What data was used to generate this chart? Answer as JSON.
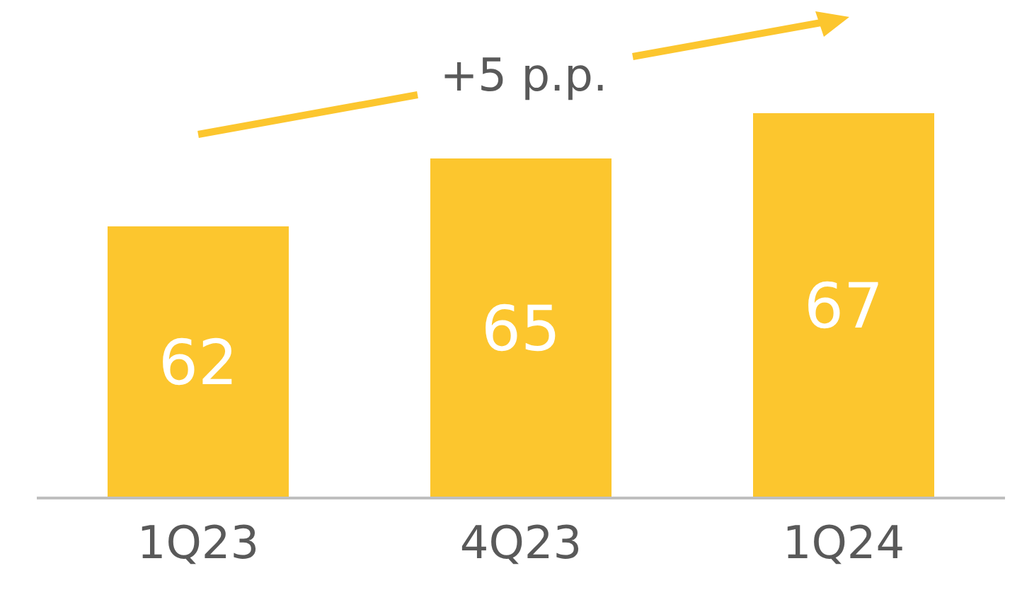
{
  "chart_data": {
    "type": "bar",
    "categories": [
      "1Q23",
      "4Q23",
      "1Q24"
    ],
    "values": [
      62,
      65,
      67
    ],
    "color": "#fcc62e",
    "ylim": [
      50,
      72
    ],
    "tick_labels": "x",
    "data_labels": true,
    "annotations": [
      "+5 p.p."
    ]
  }
}
